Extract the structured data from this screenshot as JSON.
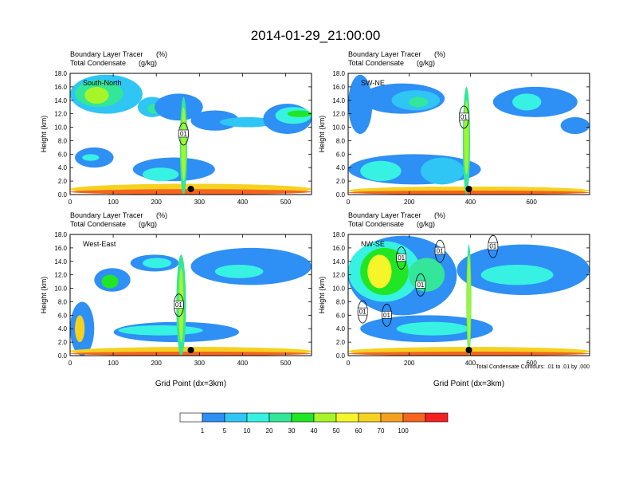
{
  "chart_data": {
    "type": "heatmap",
    "title": "2014-01-29_21:00:00",
    "note": "Total Condensate Contours: .01 to .01 by .000",
    "colorbar": {
      "levels": [
        "1",
        "5",
        "10",
        "20",
        "30",
        "40",
        "50",
        "60",
        "70",
        "100"
      ],
      "colors": [
        "#ffffff",
        "#2e8ff5",
        "#2fc5f5",
        "#37f2e2",
        "#33e699",
        "#21e625",
        "#a6f528",
        "#f5f52a",
        "#f5d21f",
        "#f5a11f",
        "#f5651f",
        "#f52020"
      ]
    },
    "panels": [
      {
        "id": "south-north",
        "label": "South-North",
        "var1": "Boundary Layer Tracer",
        "unit1": "(%)",
        "var2": "Total Condensate",
        "unit2": "(g/kg)",
        "ylabel": "Height (km)",
        "xlabel": "",
        "xlim": [
          0,
          560
        ],
        "xticks": [
          "0",
          "100",
          "200",
          "300",
          "400",
          "500"
        ],
        "xtickvals": [
          0,
          100,
          200,
          300,
          400,
          500
        ],
        "ylim": [
          0,
          18
        ],
        "yticks": [
          "0.0",
          "2.0",
          "4.0",
          "6.0",
          "8.0",
          "10.0",
          "12.0",
          "14.0",
          "16.0",
          "18.0"
        ],
        "contour_labels": [
          "01"
        ],
        "marker_x": 280
      },
      {
        "id": "sw-ne",
        "label": "SW-NE",
        "var1": "Boundary Layer Tracer",
        "unit1": "(%)",
        "var2": "Total Condensate",
        "unit2": "(g/kg)",
        "ylabel": "Height (km)",
        "xlabel": "",
        "xlim": [
          0,
          790
        ],
        "xticks": [
          "0",
          "200",
          "400",
          "600"
        ],
        "xtickvals": [
          0,
          200,
          400,
          600
        ],
        "ylim": [
          0,
          18
        ],
        "yticks": [
          "0.0",
          "2.0",
          "4.0",
          "6.0",
          "8.0",
          "10.0",
          "12.0",
          "14.0",
          "16.0",
          "18.0"
        ],
        "contour_labels": [
          "01"
        ],
        "marker_x": 395
      },
      {
        "id": "west-east",
        "label": "West-East",
        "var1": "Boundary Layer Tracer",
        "unit1": "(%)",
        "var2": "Total Condensate",
        "unit2": "(g/kg)",
        "ylabel": "Height (km)",
        "xlabel": "Grid Point (dx=3km)",
        "xlim": [
          0,
          560
        ],
        "xticks": [
          "0",
          "100",
          "200",
          "300",
          "400",
          "500"
        ],
        "xtickvals": [
          0,
          100,
          200,
          300,
          400,
          500
        ],
        "ylim": [
          0,
          18
        ],
        "yticks": [
          "0.0",
          "2.0",
          "4.0",
          "6.0",
          "8.0",
          "10.0",
          "12.0",
          "14.0",
          "16.0",
          "18.0"
        ],
        "contour_labels": [
          "01"
        ],
        "marker_x": 280
      },
      {
        "id": "nw-se",
        "label": "NW-SE",
        "var1": "Boundary Layer Tracer",
        "unit1": "(%)",
        "var2": "Total Condensate",
        "unit2": "(g/kg)",
        "ylabel": "Height (km)",
        "xlabel": "Grid Point (dx=3km)",
        "xlim": [
          0,
          790
        ],
        "xticks": [
          "0",
          "200",
          "400",
          "600"
        ],
        "xtickvals": [
          0,
          200,
          400,
          600
        ],
        "ylim": [
          0,
          18
        ],
        "yticks": [
          "0.0",
          "2.0",
          "4.0",
          "6.0",
          "8.0",
          "10.0",
          "12.0",
          "14.0",
          "16.0",
          "18.0"
        ],
        "contour_labels": [
          "01",
          "01",
          "01",
          "01",
          "01",
          "01"
        ],
        "marker_x": 395
      }
    ]
  }
}
